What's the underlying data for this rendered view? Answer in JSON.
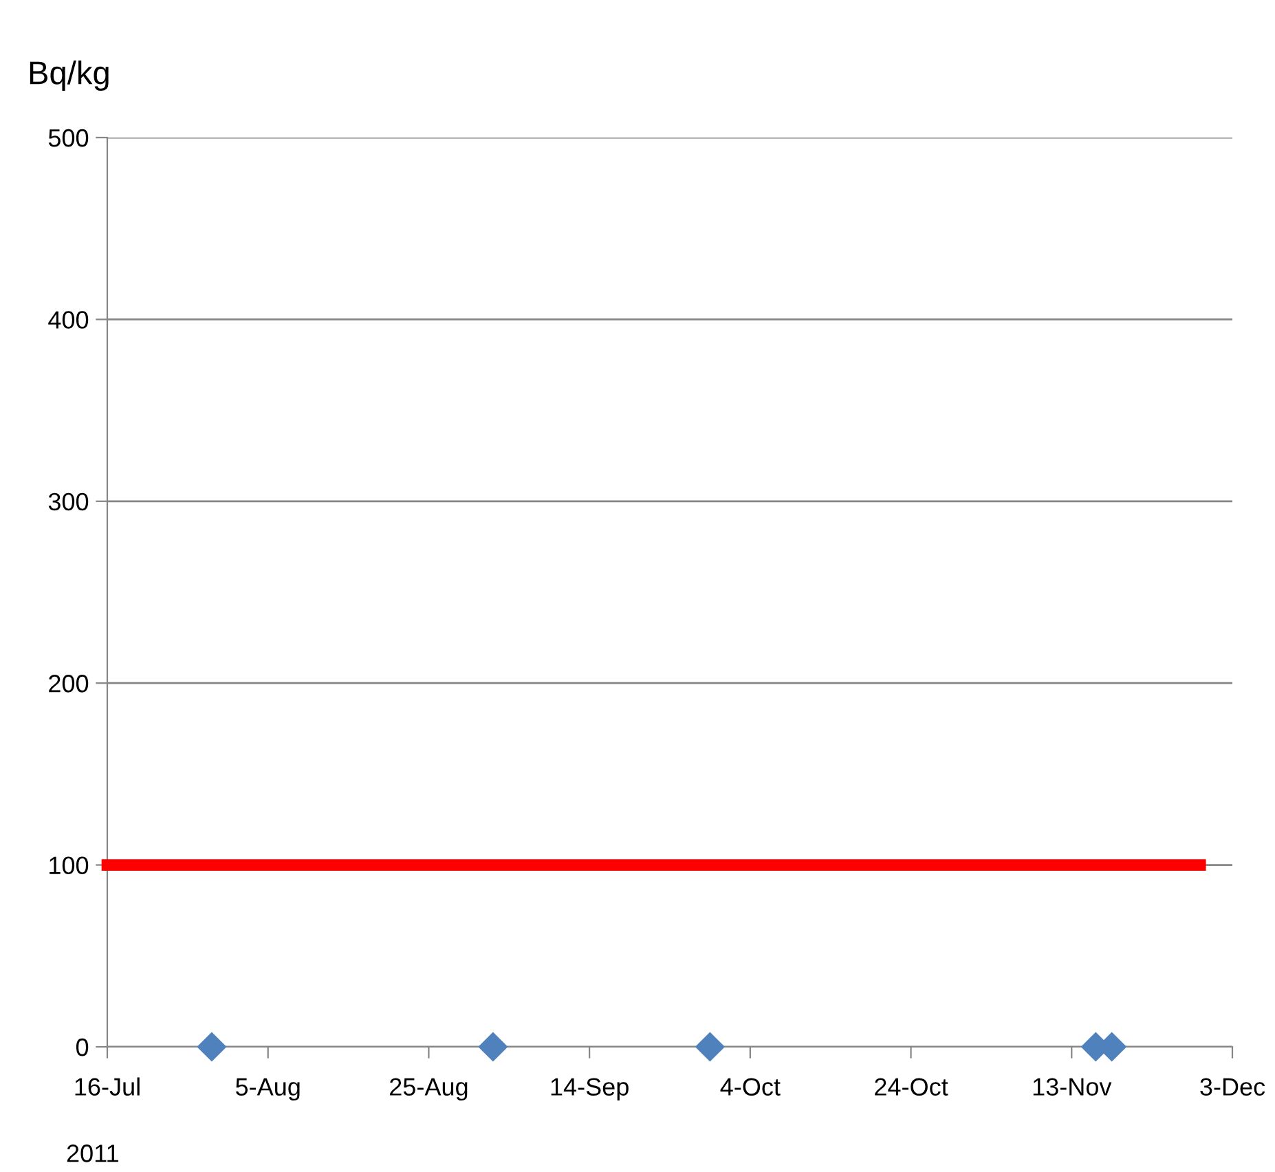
{
  "chart_data": {
    "type": "scatter",
    "ylabel": "Bq/kg",
    "xlabel": "2011",
    "x": [
      "2011-07-29",
      "2011-09-02",
      "2011-09-29",
      "2011-11-16",
      "2011-11-18"
    ],
    "series": [
      {
        "color": "#4f81bd",
        "marker": "diamond",
        "values": [
          0,
          0,
          0,
          0,
          0
        ]
      },
      {
        "type": "line",
        "color": "#ff0000",
        "x": [
          "2011-07-16",
          "2011-11-29"
        ],
        "values": [
          100,
          100
        ],
        "marker": "none"
      }
    ],
    "xlim": [
      "2011-07-16",
      "2011-12-03"
    ],
    "xticks": [
      {
        "value": "2011-07-16",
        "label": "16-Jul"
      },
      {
        "value": "2011-08-05",
        "label": "5-Aug"
      },
      {
        "value": "2011-08-25",
        "label": "25-Aug"
      },
      {
        "value": "2011-09-14",
        "label": "14-Sep"
      },
      {
        "value": "2011-10-04",
        "label": "4-Oct"
      },
      {
        "value": "2011-10-24",
        "label": "24-Oct"
      },
      {
        "value": "2011-11-13",
        "label": "13-Nov"
      },
      {
        "value": "2011-12-03",
        "label": "3-Dec"
      }
    ],
    "ylim": [
      0,
      500
    ],
    "yticks": [
      0,
      100,
      200,
      300,
      400,
      500
    ],
    "grid": "y",
    "legend": false
  }
}
